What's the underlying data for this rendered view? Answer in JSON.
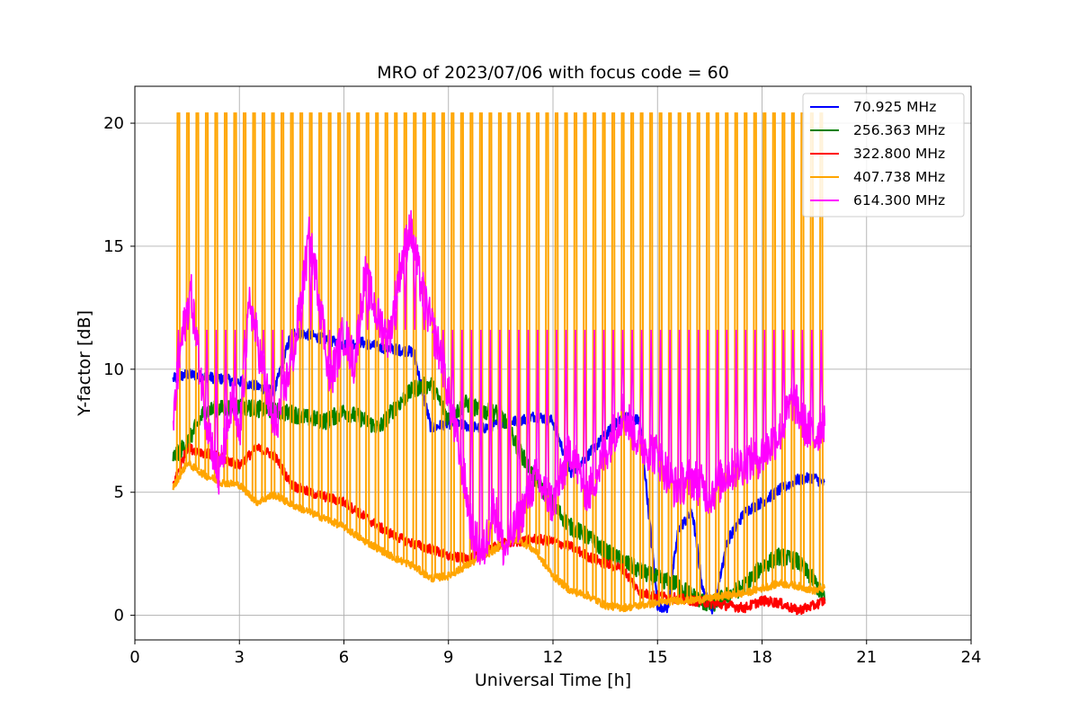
{
  "chart_data": {
    "type": "line",
    "title": "MRO of 2023/07/06 with focus code = 60",
    "xlabel": "Universal Time [h]",
    "ylabel": "Y-factor [dB]",
    "xlim": [
      0,
      24
    ],
    "ylim": [
      -1,
      21.5
    ],
    "xticks": [
      0,
      3,
      6,
      9,
      12,
      15,
      18,
      21,
      24
    ],
    "yticks": [
      0,
      5,
      10,
      15,
      20
    ],
    "grid": true,
    "legend": "top-right",
    "series": [
      {
        "name": " 70.925 MHz",
        "color": "#0000ff",
        "x": [
          1.1,
          1.5,
          2.0,
          2.5,
          3.0,
          3.5,
          4.0,
          4.5,
          5.0,
          5.5,
          6.0,
          6.5,
          7.0,
          7.5,
          8.0,
          8.5,
          9.0,
          9.5,
          10.0,
          10.5,
          11.0,
          11.5,
          12.0,
          12.5,
          13.0,
          13.5,
          14.0,
          14.5,
          15.0,
          15.3,
          15.6,
          16.0,
          16.3,
          16.6,
          17.0,
          17.5,
          18.0,
          18.5,
          19.0,
          19.5,
          19.8
        ],
        "y": [
          9.6,
          9.8,
          9.7,
          9.6,
          9.5,
          9.3,
          9.1,
          11.5,
          11.4,
          11.2,
          11.0,
          11.1,
          10.9,
          10.8,
          10.7,
          7.6,
          7.8,
          7.7,
          7.6,
          7.8,
          7.9,
          8.1,
          7.9,
          5.8,
          6.5,
          7.3,
          8.1,
          7.9,
          0.4,
          0.3,
          3.5,
          4.2,
          1.0,
          0.2,
          3.0,
          4.2,
          4.6,
          5.1,
          5.5,
          5.6,
          5.3
        ]
      },
      {
        "name": "256.363 MHz",
        "color": "#008000",
        "x": [
          1.1,
          1.5,
          2.0,
          2.5,
          3.0,
          3.5,
          4.0,
          4.5,
          5.0,
          5.5,
          6.0,
          6.5,
          7.0,
          7.5,
          8.0,
          8.5,
          9.0,
          9.5,
          10.0,
          10.5,
          11.0,
          11.5,
          12.0,
          12.5,
          13.0,
          13.5,
          14.0,
          14.5,
          15.0,
          15.5,
          16.0,
          16.5,
          17.0,
          17.5,
          18.0,
          18.5,
          19.0,
          19.5,
          19.8
        ],
        "y": [
          6.4,
          7.0,
          8.3,
          8.4,
          8.5,
          8.4,
          8.3,
          8.2,
          8.0,
          7.9,
          8.3,
          8.0,
          7.6,
          8.5,
          9.2,
          9.4,
          8.0,
          8.6,
          8.3,
          8.2,
          6.8,
          5.5,
          4.5,
          3.6,
          3.2,
          2.6,
          2.2,
          1.8,
          1.5,
          1.3,
          0.8,
          0.4,
          0.8,
          1.2,
          2.0,
          2.4,
          2.2,
          1.4,
          0.6
        ]
      },
      {
        "name": "322.800 MHz",
        "color": "#ff0000",
        "x": [
          1.1,
          1.5,
          2.0,
          2.5,
          3.0,
          3.5,
          4.0,
          4.5,
          5.0,
          5.5,
          6.0,
          6.5,
          7.0,
          7.5,
          8.0,
          8.5,
          9.0,
          9.5,
          10.0,
          10.5,
          11.0,
          11.5,
          12.0,
          12.5,
          13.0,
          13.5,
          14.0,
          14.5,
          15.0,
          15.5,
          16.0,
          16.5,
          17.0,
          17.5,
          18.0,
          18.5,
          19.0,
          19.5,
          19.8
        ],
        "y": [
          5.3,
          6.8,
          6.6,
          6.4,
          6.1,
          6.8,
          6.5,
          5.3,
          5.0,
          4.8,
          4.6,
          4.1,
          3.6,
          3.2,
          2.9,
          2.7,
          2.4,
          2.3,
          2.5,
          2.9,
          3.0,
          3.1,
          3.0,
          2.8,
          2.4,
          2.1,
          1.9,
          0.9,
          0.8,
          0.7,
          0.6,
          0.5,
          0.4,
          0.3,
          0.6,
          0.5,
          0.2,
          0.4,
          0.6
        ]
      },
      {
        "name": "407.738 MHz",
        "color": "#ffa500",
        "x": [
          1.1,
          1.5,
          2.0,
          2.5,
          3.0,
          3.5,
          4.0,
          4.5,
          5.0,
          5.5,
          6.0,
          6.5,
          7.0,
          7.5,
          8.0,
          8.5,
          9.0,
          9.5,
          10.0,
          10.5,
          11.0,
          11.5,
          12.0,
          12.5,
          13.0,
          13.5,
          14.0,
          14.5,
          15.0,
          15.5,
          16.0,
          16.5,
          17.0,
          17.5,
          18.0,
          18.5,
          19.0,
          19.5,
          19.8
        ],
        "y": [
          5.2,
          6.2,
          5.7,
          5.4,
          5.3,
          4.6,
          4.9,
          4.5,
          4.2,
          3.9,
          3.6,
          3.1,
          2.7,
          2.3,
          2.0,
          1.5,
          1.6,
          2.0,
          2.4,
          2.8,
          3.1,
          2.6,
          1.6,
          1.0,
          0.8,
          0.4,
          0.3,
          0.4,
          0.5,
          0.6,
          0.6,
          0.7,
          0.8,
          0.9,
          1.1,
          1.3,
          1.2,
          1.0,
          1.1
        ],
        "cal_pulses": {
          "start": 1.25,
          "end": 19.7,
          "count": 69,
          "peak": 20.4
        }
      },
      {
        "name": "614.300 MHz",
        "color": "#ff00ff",
        "x": [
          1.1,
          1.3,
          1.6,
          2.0,
          2.4,
          2.8,
          3.0,
          3.3,
          3.6,
          4.0,
          4.3,
          4.6,
          5.0,
          5.3,
          5.6,
          6.0,
          6.3,
          6.6,
          7.0,
          7.3,
          7.6,
          7.9,
          8.2,
          8.5,
          8.8,
          9.1,
          9.4,
          9.7,
          10.0,
          10.3,
          10.6,
          11.0,
          11.5,
          12.0,
          12.5,
          13.0,
          13.5,
          14.0,
          14.5,
          15.0,
          15.5,
          16.0,
          16.5,
          17.0,
          17.5,
          18.0,
          18.5,
          18.9,
          19.2,
          19.5,
          19.8
        ],
        "y": [
          7.8,
          10.8,
          13.2,
          8.5,
          5.5,
          8.7,
          7.2,
          12.8,
          10.5,
          7.5,
          9.2,
          11.0,
          15.3,
          13.0,
          9.5,
          11.5,
          10.2,
          13.8,
          12.0,
          11.2,
          14.0,
          15.8,
          13.5,
          11.8,
          10.5,
          8.2,
          6.0,
          3.2,
          2.5,
          4.5,
          2.6,
          3.8,
          5.6,
          4.5,
          6.8,
          4.9,
          6.6,
          8.3,
          7.0,
          6.5,
          5.2,
          5.6,
          4.9,
          5.8,
          6.2,
          6.5,
          7.4,
          8.8,
          7.8,
          7.2,
          8.0
        ]
      }
    ]
  }
}
